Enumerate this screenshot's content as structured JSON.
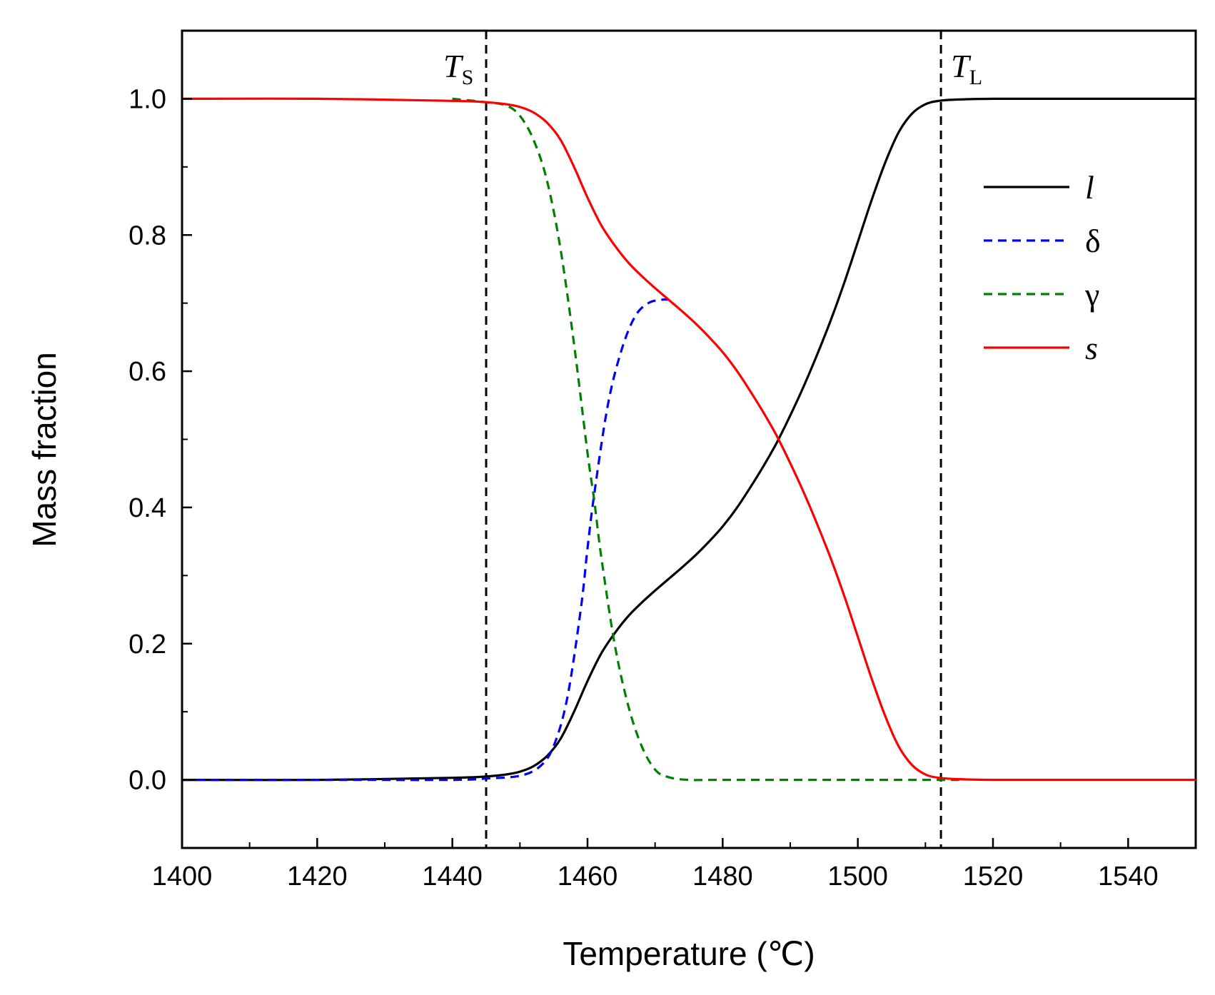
{
  "chart_data": {
    "type": "line",
    "title": "",
    "xlabel": "Temperature (℃)",
    "ylabel": "Mass fraction",
    "xlim": [
      1400,
      1550
    ],
    "ylim": [
      -0.1,
      1.1
    ],
    "xticks": [
      1400,
      1420,
      1440,
      1460,
      1480,
      1500,
      1520,
      1540
    ],
    "xtick_labels": [
      "1400",
      "1420",
      "1440",
      "1460",
      "1480",
      "1500",
      "1520",
      "1540"
    ],
    "yticks": [
      0.0,
      0.2,
      0.4,
      0.6,
      0.8,
      1.0
    ],
    "ytick_labels": [
      "0.0",
      "0.2",
      "0.4",
      "0.6",
      "0.8",
      "1.0"
    ],
    "grid": false,
    "legend_position": "right",
    "vlines": [
      {
        "name": "T_S",
        "label_main": "T",
        "label_sub": "S",
        "x": 1445.0,
        "color": "#000000",
        "style": "dashed"
      },
      {
        "name": "T_L",
        "label_main": "T",
        "label_sub": "L",
        "x": 1512.3,
        "color": "#000000",
        "style": "dashed"
      }
    ],
    "series": [
      {
        "name": "l",
        "color": "#000000",
        "style": "solid",
        "x": [
          1400,
          1420,
          1440,
          1445,
          1448,
          1450,
          1452,
          1454,
          1456,
          1458,
          1460,
          1462,
          1464,
          1466,
          1468,
          1470,
          1472,
          1474,
          1476,
          1478,
          1480,
          1482,
          1484,
          1486,
          1488,
          1490,
          1492,
          1494,
          1496,
          1498,
          1500,
          1502,
          1504,
          1506,
          1508,
          1510,
          1512,
          1515,
          1520,
          1530,
          1550
        ],
        "y": [
          0.0,
          0.0,
          0.003,
          0.005,
          0.008,
          0.012,
          0.02,
          0.035,
          0.06,
          0.1,
          0.145,
          0.185,
          0.215,
          0.24,
          0.26,
          0.278,
          0.295,
          0.312,
          0.33,
          0.35,
          0.372,
          0.398,
          0.428,
          0.46,
          0.495,
          0.535,
          0.578,
          0.625,
          0.675,
          0.73,
          0.79,
          0.85,
          0.905,
          0.95,
          0.978,
          0.992,
          0.997,
          0.999,
          1.0,
          1.0,
          1.0
        ]
      },
      {
        "name": "δ",
        "color": "#0000ff",
        "style": "dashed",
        "x": [
          1400,
          1420,
          1440,
          1445,
          1450,
          1453,
          1455,
          1457,
          1459,
          1460,
          1461,
          1463,
          1465,
          1467,
          1469,
          1471,
          1472
        ],
        "y": [
          0.0,
          0.0,
          0.0,
          0.002,
          0.006,
          0.02,
          0.05,
          0.12,
          0.25,
          0.34,
          0.42,
          0.55,
          0.63,
          0.68,
          0.7,
          0.705,
          0.705
        ]
      },
      {
        "name": "γ",
        "color": "#008000",
        "style": "dashed",
        "x": [
          1440,
          1445,
          1448,
          1450,
          1452,
          1454,
          1456,
          1458,
          1460,
          1461,
          1462,
          1464,
          1466,
          1468,
          1470,
          1472,
          1475,
          1480,
          1500,
          1515
        ],
        "y": [
          1.0,
          0.995,
          0.99,
          0.975,
          0.94,
          0.88,
          0.78,
          0.64,
          0.48,
          0.41,
          0.33,
          0.2,
          0.11,
          0.05,
          0.015,
          0.004,
          0.0,
          0.0,
          0.0,
          0.0
        ]
      },
      {
        "name": "s",
        "color": "#ff0000",
        "style": "solid",
        "x": [
          1400,
          1420,
          1440,
          1445,
          1448,
          1450,
          1452,
          1454,
          1456,
          1458,
          1460,
          1462,
          1464,
          1466,
          1468,
          1470,
          1472,
          1474,
          1476,
          1478,
          1480,
          1482,
          1484,
          1486,
          1488,
          1490,
          1492,
          1494,
          1496,
          1498,
          1500,
          1502,
          1504,
          1506,
          1508,
          1510,
          1512,
          1515,
          1520,
          1530,
          1550
        ],
        "y": [
          1.0,
          1.0,
          0.997,
          0.995,
          0.992,
          0.988,
          0.98,
          0.965,
          0.94,
          0.9,
          0.855,
          0.815,
          0.785,
          0.76,
          0.74,
          0.722,
          0.705,
          0.688,
          0.67,
          0.65,
          0.628,
          0.602,
          0.572,
          0.54,
          0.505,
          0.465,
          0.422,
          0.375,
          0.325,
          0.27,
          0.21,
          0.15,
          0.095,
          0.05,
          0.022,
          0.008,
          0.003,
          0.001,
          0.0,
          0.0,
          0.0
        ]
      }
    ],
    "legend": [
      {
        "label": "l",
        "color": "#000000",
        "style": "solid",
        "italic": true
      },
      {
        "label": "δ",
        "color": "#0000ff",
        "style": "dashed",
        "italic": false
      },
      {
        "label": "γ",
        "color": "#008000",
        "style": "dashed",
        "italic": false
      },
      {
        "label": "s",
        "color": "#ff0000",
        "style": "solid",
        "italic": true
      }
    ]
  }
}
